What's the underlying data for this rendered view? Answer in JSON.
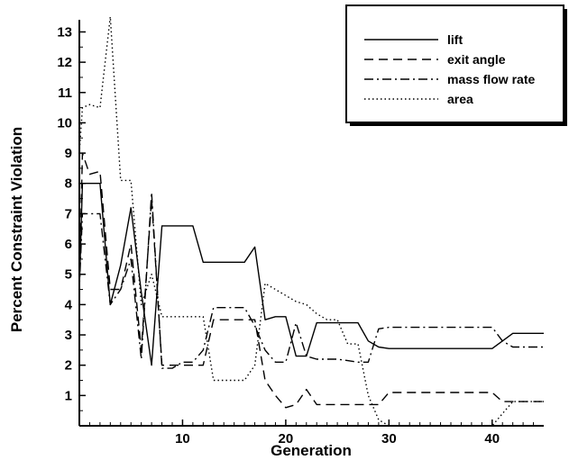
{
  "chart_data": {
    "type": "line",
    "title": "",
    "xlabel": "Generation",
    "ylabel": "Percent Constraint Violation",
    "xlim": [
      0,
      45
    ],
    "ylim": [
      0,
      13.4
    ],
    "xticks": [
      10,
      20,
      30,
      40
    ],
    "yticks": [
      1,
      2,
      3,
      4,
      5,
      6,
      7,
      8,
      9,
      10,
      11,
      12,
      13
    ],
    "grid": false,
    "legend_position": "top-right",
    "series": [
      {
        "name": "lift",
        "style": "solid",
        "x": [
          0,
          0.3,
          1,
          2,
          3,
          4,
          5,
          6,
          7,
          8,
          9,
          10,
          11,
          12,
          13,
          14,
          15,
          16,
          17,
          18,
          19,
          20,
          21,
          22,
          23,
          24,
          25,
          26,
          27,
          28,
          29,
          30,
          31,
          35,
          40,
          41,
          42,
          43,
          45
        ],
        "values": [
          4.5,
          8,
          8,
          8,
          4,
          5.3,
          7.2,
          4.4,
          2,
          6.6,
          6.6,
          6.6,
          6.6,
          5.4,
          5.4,
          5.4,
          5.4,
          5.4,
          5.9,
          3.5,
          3.6,
          3.6,
          2.3,
          2.3,
          3.4,
          3.4,
          3.4,
          3.4,
          3.4,
          2.8,
          2.6,
          2.55,
          2.55,
          2.55,
          2.55,
          2.8,
          3.05,
          3.05,
          3.05
        ]
      },
      {
        "name": "exit angle",
        "style": "dashed",
        "x": [
          0,
          0.3,
          1,
          2,
          3,
          4,
          5,
          6,
          7,
          8,
          9,
          10,
          12,
          13,
          14,
          15,
          16,
          17,
          18,
          19,
          20,
          21,
          22,
          23,
          25,
          28,
          29,
          30,
          35,
          40,
          41,
          42,
          45
        ],
        "values": [
          4.5,
          9,
          8.3,
          8.4,
          4.5,
          4.5,
          6,
          2.5,
          7.5,
          2,
          2,
          2,
          2,
          3.5,
          3.5,
          3.5,
          3.5,
          3.5,
          1.5,
          1,
          0.6,
          0.7,
          1.2,
          0.7,
          0.7,
          0.7,
          0.7,
          1.1,
          1.1,
          1.1,
          0.8,
          0.8,
          0.8
        ]
      },
      {
        "name": "mass flow rate",
        "style": "dashdot",
        "x": [
          0,
          0.3,
          1,
          2,
          3,
          4,
          5,
          6,
          7,
          8,
          9,
          10,
          11,
          12,
          13,
          14,
          15,
          16,
          17,
          18,
          19,
          20,
          21,
          22,
          23,
          24,
          25,
          26,
          27,
          28,
          29,
          30,
          35,
          40,
          41,
          42,
          45
        ],
        "values": [
          4.5,
          7,
          7,
          7,
          4,
          4.5,
          5.5,
          2.2,
          7.7,
          1.9,
          1.9,
          2.1,
          2.1,
          2.5,
          3.9,
          3.9,
          3.9,
          3.9,
          3.3,
          2.5,
          2.1,
          2.1,
          3.4,
          2.3,
          2.2,
          2.2,
          2.2,
          2.15,
          2.1,
          2.1,
          3.2,
          3.25,
          3.25,
          3.25,
          2.8,
          2.6,
          2.6
        ]
      },
      {
        "name": "area",
        "style": "dotted",
        "x": [
          0,
          0.3,
          1,
          2,
          3,
          4,
          5,
          6,
          7,
          8,
          9,
          10,
          11,
          12,
          13,
          14,
          15,
          16,
          17,
          18,
          19,
          20,
          21,
          22,
          23,
          24,
          25,
          26,
          27,
          28,
          29,
          30,
          35,
          40,
          41,
          42,
          45
        ],
        "values": [
          9,
          10.5,
          10.6,
          10.5,
          13.5,
          8.1,
          8.1,
          4,
          5,
          3.6,
          3.6,
          3.6,
          3.6,
          3.6,
          1.5,
          1.5,
          1.5,
          1.5,
          2,
          4.7,
          4.5,
          4.3,
          4.1,
          4,
          3.7,
          3.5,
          3.5,
          2.7,
          2.7,
          1,
          0.2,
          0,
          0,
          0,
          0.4,
          0.8,
          0.8
        ]
      }
    ]
  }
}
